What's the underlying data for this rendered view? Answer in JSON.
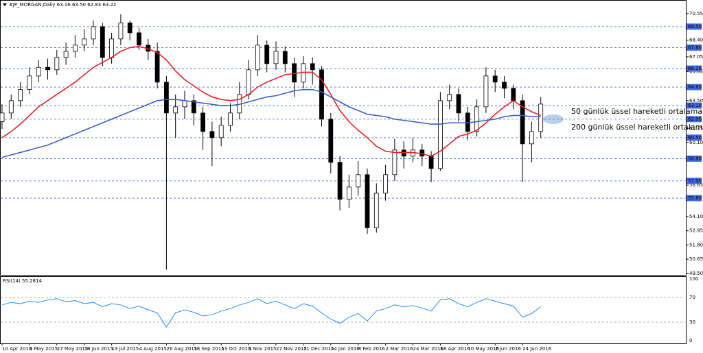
{
  "chart_data": [
    {
      "type": "candlestick",
      "title": "#JP_MORGAN,Daily  63.16 63.50 62.83 63.22",
      "categories": [
        "10 Apr 2015",
        null,
        null,
        "4 May 2015",
        null,
        null,
        "27 May 2015",
        null,
        null,
        "18 Jun 2015",
        null,
        null,
        "13 Jul 2015",
        null,
        null,
        "4 Aug 2015",
        null,
        null,
        "26 Aug 2015",
        null,
        null,
        "18 Sep 2015",
        null,
        null,
        "13 Oct 2015",
        null,
        null,
        "4 Nov 2015",
        null,
        null,
        "27 Nov 2015",
        null,
        null,
        "21 Dec 2015",
        null,
        null,
        "14 Jan 2016",
        null,
        null,
        "8 Feb 2016",
        null,
        null,
        "2 Mar 2016",
        null,
        null,
        "24 Mar 2016",
        null,
        null,
        "18 Apr 2016",
        null,
        null,
        "10 May 2016",
        null,
        null,
        "2 Jun 2016",
        null,
        null,
        "24 Jun 2016",
        null,
        null
      ],
      "ohlc": [
        [
          61.8,
          63.2,
          61.2,
          62.5
        ],
        [
          62.5,
          64.0,
          62.0,
          63.5
        ],
        [
          63.5,
          65.0,
          63.0,
          64.4
        ],
        [
          64.4,
          66.2,
          64.0,
          65.5
        ],
        [
          65.5,
          66.8,
          65.0,
          66.2
        ],
        [
          66.2,
          66.9,
          65.2,
          66.0
        ],
        [
          66.0,
          67.6,
          65.6,
          67.0
        ],
        [
          67.0,
          68.2,
          66.4,
          67.5
        ],
        [
          67.5,
          68.8,
          67.0,
          68.0
        ],
        [
          68.0,
          69.3,
          67.5,
          68.5
        ],
        [
          68.5,
          70.0,
          68.0,
          69.5
        ],
        [
          69.5,
          69.8,
          66.3,
          67.0
        ],
        [
          67.0,
          69.0,
          66.5,
          68.5
        ],
        [
          68.5,
          70.5,
          68.0,
          69.8
        ],
        [
          69.8,
          70.0,
          68.4,
          69.0
        ],
        [
          69.0,
          69.4,
          67.6,
          68.0
        ],
        [
          68.0,
          68.5,
          66.8,
          67.5
        ],
        [
          67.5,
          68.2,
          64.5,
          65.0
        ],
        [
          65.0,
          65.5,
          49.8,
          62.5
        ],
        [
          62.5,
          64.0,
          60.5,
          63.0
        ],
        [
          63.0,
          64.3,
          62.0,
          63.5
        ],
        [
          63.5,
          64.0,
          61.5,
          62.5
        ],
        [
          62.5,
          63.0,
          59.5,
          61.0
        ],
        [
          61.0,
          61.8,
          58.2,
          60.5
        ],
        [
          60.5,
          62.2,
          59.8,
          61.5
        ],
        [
          61.5,
          63.3,
          61.0,
          62.5
        ],
        [
          62.5,
          65.0,
          62.0,
          64.0
        ],
        [
          64.0,
          66.8,
          63.6,
          66.0
        ],
        [
          66.0,
          68.8,
          65.5,
          68.0
        ],
        [
          68.0,
          68.4,
          65.8,
          66.5
        ],
        [
          66.5,
          68.3,
          66.0,
          67.5
        ],
        [
          67.5,
          67.9,
          65.8,
          66.5
        ],
        [
          66.5,
          67.0,
          63.8,
          65.0
        ],
        [
          65.0,
          67.1,
          64.5,
          66.5
        ],
        [
          66.5,
          67.0,
          64.8,
          66.0
        ],
        [
          66.0,
          66.3,
          61.4,
          62.0
        ],
        [
          62.0,
          62.5,
          57.6,
          58.5
        ],
        [
          58.5,
          59.0,
          54.6,
          55.5
        ],
        [
          55.5,
          57.5,
          54.8,
          56.5
        ],
        [
          56.5,
          58.6,
          55.8,
          57.5
        ],
        [
          57.5,
          58.0,
          52.7,
          53.2
        ],
        [
          53.2,
          56.8,
          52.8,
          56.0
        ],
        [
          56.0,
          58.3,
          55.4,
          57.5
        ],
        [
          57.5,
          60.4,
          57.0,
          59.5
        ],
        [
          59.5,
          60.2,
          58.0,
          59.0
        ],
        [
          59.0,
          60.5,
          58.5,
          59.5
        ],
        [
          59.5,
          60.0,
          58.2,
          59.0
        ],
        [
          59.0,
          59.4,
          56.9,
          58.0
        ],
        [
          58.0,
          64.2,
          57.8,
          63.5
        ],
        [
          63.5,
          64.8,
          62.8,
          64.0
        ],
        [
          64.0,
          64.5,
          61.8,
          62.5
        ],
        [
          62.5,
          63.0,
          60.3,
          61.0
        ],
        [
          61.0,
          63.6,
          60.6,
          63.0
        ],
        [
          63.0,
          66.2,
          62.5,
          65.5
        ],
        [
          65.5,
          66.0,
          64.2,
          65.0
        ],
        [
          65.0,
          65.5,
          63.7,
          64.5
        ],
        [
          64.5,
          64.8,
          62.8,
          63.5
        ],
        [
          63.5,
          64.0,
          56.9,
          60.0
        ],
        [
          60.0,
          61.8,
          58.5,
          61.0
        ],
        [
          61.0,
          63.8,
          60.5,
          63.22
        ]
      ],
      "series": [
        {
          "name": "50 günlük üssel hareketli ortalama",
          "color": "#e8202a",
          "values": [
            60.5,
            61.0,
            61.6,
            62.3,
            63.0,
            63.5,
            64.0,
            64.5,
            65.0,
            65.6,
            66.2,
            66.6,
            67.0,
            67.5,
            67.8,
            67.9,
            67.7,
            67.4,
            66.8,
            65.9,
            65.2,
            64.7,
            64.2,
            63.8,
            63.6,
            63.5,
            63.6,
            64.0,
            64.6,
            65.0,
            65.3,
            65.6,
            65.7,
            65.8,
            65.8,
            65.2,
            64.0,
            62.7,
            61.8,
            61.1,
            60.5,
            59.8,
            59.4,
            59.3,
            59.3,
            59.3,
            59.2,
            59.0,
            59.4,
            60.0,
            60.6,
            60.8,
            61.1,
            61.7,
            62.4,
            63.0,
            63.5,
            63.0,
            62.6,
            62.3
          ]
        },
        {
          "name": "200 günlük üssel hareketli ortalama",
          "color": "#3a5fcd",
          "values": [
            58.9,
            59.1,
            59.3,
            59.5,
            59.7,
            59.9,
            60.2,
            60.5,
            60.8,
            61.1,
            61.4,
            61.7,
            62.0,
            62.3,
            62.6,
            62.9,
            63.2,
            63.5,
            63.6,
            63.6,
            63.5,
            63.4,
            63.3,
            63.2,
            63.1,
            63.1,
            63.2,
            63.4,
            63.6,
            63.8,
            63.9,
            64.1,
            64.3,
            64.4,
            64.4,
            64.2,
            63.8,
            63.4,
            63.0,
            62.7,
            62.4,
            62.3,
            62.2,
            62.0,
            61.9,
            61.8,
            61.7,
            61.6,
            61.6,
            61.7,
            61.7,
            61.7,
            61.8,
            61.9,
            62.0,
            62.2,
            62.3,
            62.3,
            62.2,
            62.2
          ]
        }
      ],
      "ylim": [
        49.38,
        71.38
      ],
      "yticks": [
        70.55,
        {
          "value": 68.4,
          "label": "68.40"
        },
        67.05,
        65.85,
        {
          "value": 63.5,
          "label": "63.50"
        },
        61.25,
        {
          "value": 60.1,
          "label": "60.10"
        },
        56.65,
        {
          "value": 54.1,
          "label": "54.10"
        },
        52.95,
        {
          "value": 51.8,
          "label": "51.80"
        },
        50.65,
        {
          "value": 49.5,
          "label": "49.50"
        }
      ],
      "levels": [
        {
          "value": 69.5,
          "label": "69.50"
        },
        {
          "value": 67.8,
          "label": "67.80"
        },
        {
          "value": 66.1,
          "label": "66.10"
        },
        {
          "value": 64.6,
          "label": "64.60"
        },
        {
          "value": 63.1,
          "label": "63.10"
        },
        {
          "value": 62.0,
          "label": "62.00"
        },
        {
          "value": 60.5,
          "label": "60.50"
        },
        {
          "value": 58.8,
          "label": "58.80"
        },
        {
          "value": 57.0,
          "label": "57.00"
        },
        {
          "value": 55.6,
          "label": "55.60"
        }
      ],
      "level_color": "#4169e1"
    },
    {
      "type": "line",
      "title": "RSI(14) 55.2814",
      "color": "#1e90ff",
      "values": [
        58,
        62,
        60,
        64,
        62,
        66,
        68,
        63,
        65,
        60,
        62,
        55,
        60,
        58,
        52,
        56,
        50,
        45,
        22,
        45,
        50,
        46,
        40,
        42,
        48,
        52,
        58,
        62,
        68,
        60,
        64,
        58,
        52,
        60,
        56,
        45,
        35,
        28,
        38,
        44,
        32,
        48,
        52,
        58,
        55,
        57,
        53,
        48,
        66,
        68,
        60,
        55,
        62,
        68,
        64,
        60,
        56,
        38,
        44,
        55.28
      ],
      "ylim": [
        0,
        100
      ],
      "yticks": [
        0,
        30,
        70,
        100
      ]
    }
  ]
}
